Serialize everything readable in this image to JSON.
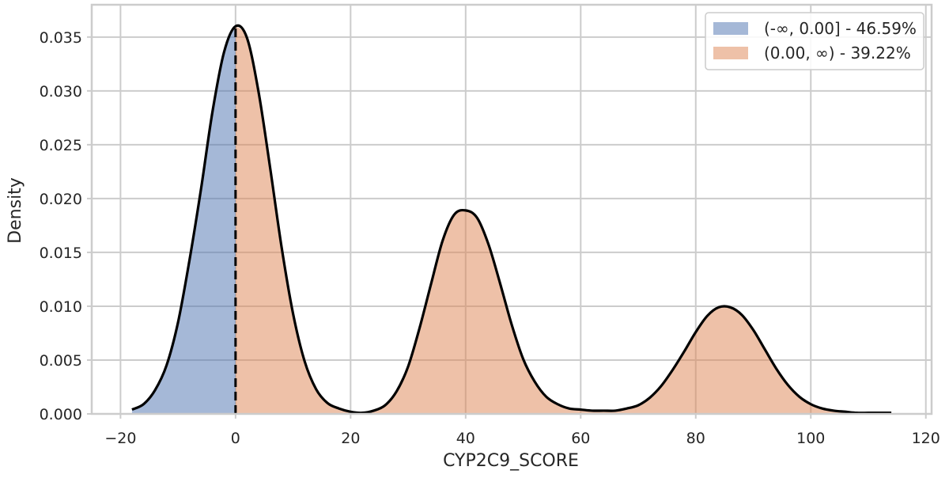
{
  "chart_data": {
    "type": "area",
    "xlabel": "CYP2C9_SCORE",
    "ylabel": "Density",
    "xlim": [
      -25,
      121
    ],
    "ylim": [
      0,
      0.038
    ],
    "xticks": [
      -20,
      0,
      20,
      40,
      60,
      80,
      100,
      120
    ],
    "xtick_labels": [
      "−20",
      "0",
      "20",
      "40",
      "60",
      "80",
      "100",
      "120"
    ],
    "yticks": [
      0,
      0.005,
      0.01,
      0.015,
      0.02,
      0.025,
      0.03,
      0.035
    ],
    "ytick_labels": [
      "0.000",
      "0.005",
      "0.010",
      "0.015",
      "0.020",
      "0.025",
      "0.030",
      "0.035"
    ],
    "grid": true,
    "threshold": 0.0,
    "legend_position": "top-right",
    "series": [
      {
        "name": "(-∞, 0.00] - 46.59%",
        "color": "#4c72b0",
        "x_range": [
          -18,
          0
        ]
      },
      {
        "name": "(0.00, ∞) - 39.22%",
        "color": "#dd8452",
        "x_range": [
          0,
          114
        ]
      }
    ],
    "density_curve": {
      "color": "#000000",
      "x": [
        -18,
        -16,
        -14,
        -12,
        -10,
        -8,
        -6,
        -4,
        -2,
        0,
        2,
        4,
        6,
        8,
        10,
        12,
        14,
        16,
        18,
        20,
        22,
        24,
        26,
        28,
        30,
        32,
        34,
        36,
        38,
        40,
        42,
        44,
        46,
        48,
        50,
        52,
        54,
        56,
        58,
        60,
        62,
        64,
        66,
        68,
        70,
        72,
        74,
        76,
        78,
        80,
        82,
        84,
        86,
        88,
        90,
        92,
        94,
        96,
        98,
        100,
        102,
        104,
        106,
        108,
        110,
        112,
        114
      ],
      "y": [
        0.0004,
        0.0009,
        0.0022,
        0.0045,
        0.0085,
        0.0143,
        0.0209,
        0.0281,
        0.0336,
        0.036,
        0.0349,
        0.0299,
        0.0229,
        0.0155,
        0.0093,
        0.0049,
        0.0023,
        0.001,
        0.0005,
        0.0002,
        0.0001,
        0.0003,
        0.0008,
        0.0021,
        0.0044,
        0.008,
        0.0121,
        0.0161,
        0.0185,
        0.0189,
        0.0182,
        0.0157,
        0.0121,
        0.0083,
        0.0051,
        0.003,
        0.0016,
        0.0009,
        0.0005,
        0.0004,
        0.0003,
        0.0003,
        0.0003,
        0.0005,
        0.0008,
        0.0015,
        0.0026,
        0.0041,
        0.0058,
        0.0076,
        0.0091,
        0.0099,
        0.0099,
        0.0092,
        0.0078,
        0.006,
        0.0042,
        0.0027,
        0.0016,
        0.0009,
        0.0005,
        0.0003,
        0.0002,
        0.0001,
        0.0001,
        0.0001,
        0.0001
      ]
    }
  }
}
